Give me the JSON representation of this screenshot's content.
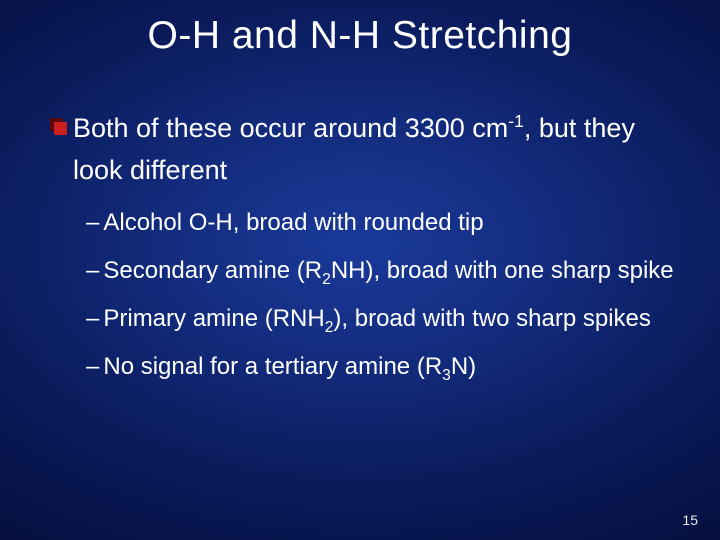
{
  "slide": {
    "title": "O-H and N-H Stretching",
    "main_point_pre": "Both of these occur around 3300 cm",
    "main_point_sup": "-1",
    "main_point_post": ", but they look different",
    "sub_items": [
      {
        "pre": "Alcohol O-H, broad with rounded tip",
        "sub": null,
        "post": null
      },
      {
        "pre": "Secondary amine (R",
        "sub": "2",
        "mid": "NH), broad with one sharp spike",
        "post": null
      },
      {
        "pre": "Primary amine (RNH",
        "sub": "2",
        "mid": "), broad with two sharp spikes",
        "post": null
      },
      {
        "pre": "No signal for a tertiary amine (R",
        "sub": "3",
        "mid": "N)",
        "post": null
      }
    ],
    "page_number": "15"
  },
  "style": {
    "background_gradient_inner": "#1a3a9a",
    "background_gradient_outer": "#050f3e",
    "text_color": "#ffffff",
    "bullet_color_back": "#5a0808",
    "bullet_color_front": "#cc2020",
    "title_fontsize": 39,
    "body_fontsize": 27,
    "sub_fontsize": 24,
    "pagenum_fontsize": 14,
    "font_family": "Arial"
  }
}
